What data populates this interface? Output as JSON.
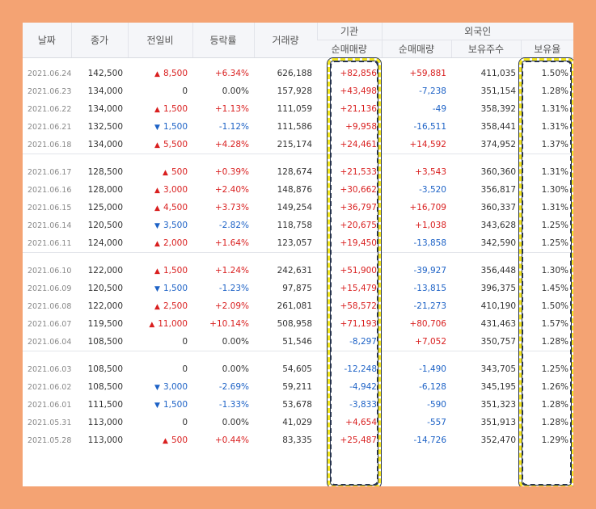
{
  "headers": {
    "date": "날짜",
    "close": "종가",
    "change": "전일비",
    "rate": "등락률",
    "volume": "거래량",
    "institution": "기관",
    "institution_net": "순매매량",
    "foreign": "외국인",
    "foreign_net": "순매매량",
    "foreign_shares": "보유주수",
    "foreign_ratio": "보유율"
  },
  "groups": [
    [
      {
        "date": "2021.06.24",
        "close": "142,500",
        "dir": "up",
        "change": "8,500",
        "rate": "+6.34%",
        "volume": "626,188",
        "inst": "+82,856",
        "frgn": "+59,881",
        "shares": "411,035",
        "ratio": "1.50%"
      },
      {
        "date": "2021.06.23",
        "close": "134,000",
        "dir": "none",
        "change": "0",
        "rate": "0.00%",
        "volume": "157,928",
        "inst": "+43,498",
        "frgn": "-7,238",
        "shares": "351,154",
        "ratio": "1.28%"
      },
      {
        "date": "2021.06.22",
        "close": "134,000",
        "dir": "up",
        "change": "1,500",
        "rate": "+1.13%",
        "volume": "111,059",
        "inst": "+21,136",
        "frgn": "-49",
        "shares": "358,392",
        "ratio": "1.31%"
      },
      {
        "date": "2021.06.21",
        "close": "132,500",
        "dir": "dn",
        "change": "1,500",
        "rate": "-1.12%",
        "volume": "111,586",
        "inst": "+9,958",
        "frgn": "-16,511",
        "shares": "358,441",
        "ratio": "1.31%"
      },
      {
        "date": "2021.06.18",
        "close": "134,000",
        "dir": "up",
        "change": "5,500",
        "rate": "+4.28%",
        "volume": "215,174",
        "inst": "+24,461",
        "frgn": "+14,592",
        "shares": "374,952",
        "ratio": "1.37%"
      }
    ],
    [
      {
        "date": "2021.06.17",
        "close": "128,500",
        "dir": "up",
        "change": "500",
        "rate": "+0.39%",
        "volume": "128,674",
        "inst": "+21,533",
        "frgn": "+3,543",
        "shares": "360,360",
        "ratio": "1.31%"
      },
      {
        "date": "2021.06.16",
        "close": "128,000",
        "dir": "up",
        "change": "3,000",
        "rate": "+2.40%",
        "volume": "148,876",
        "inst": "+30,662",
        "frgn": "-3,520",
        "shares": "356,817",
        "ratio": "1.30%"
      },
      {
        "date": "2021.06.15",
        "close": "125,000",
        "dir": "up",
        "change": "4,500",
        "rate": "+3.73%",
        "volume": "149,254",
        "inst": "+36,797",
        "frgn": "+16,709",
        "shares": "360,337",
        "ratio": "1.31%"
      },
      {
        "date": "2021.06.14",
        "close": "120,500",
        "dir": "dn",
        "change": "3,500",
        "rate": "-2.82%",
        "volume": "118,758",
        "inst": "+20,675",
        "frgn": "+1,038",
        "shares": "343,628",
        "ratio": "1.25%"
      },
      {
        "date": "2021.06.11",
        "close": "124,000",
        "dir": "up",
        "change": "2,000",
        "rate": "+1.64%",
        "volume": "123,057",
        "inst": "+19,450",
        "frgn": "-13,858",
        "shares": "342,590",
        "ratio": "1.25%"
      }
    ],
    [
      {
        "date": "2021.06.10",
        "close": "122,000",
        "dir": "up",
        "change": "1,500",
        "rate": "+1.24%",
        "volume": "242,631",
        "inst": "+51,900",
        "frgn": "-39,927",
        "shares": "356,448",
        "ratio": "1.30%"
      },
      {
        "date": "2021.06.09",
        "close": "120,500",
        "dir": "dn",
        "change": "1,500",
        "rate": "-1.23%",
        "volume": "97,875",
        "inst": "+15,479",
        "frgn": "-13,815",
        "shares": "396,375",
        "ratio": "1.45%"
      },
      {
        "date": "2021.06.08",
        "close": "122,000",
        "dir": "up",
        "change": "2,500",
        "rate": "+2.09%",
        "volume": "261,081",
        "inst": "+58,572",
        "frgn": "-21,273",
        "shares": "410,190",
        "ratio": "1.50%"
      },
      {
        "date": "2021.06.07",
        "close": "119,500",
        "dir": "up",
        "change": "11,000",
        "rate": "+10.14%",
        "volume": "508,958",
        "inst": "+71,193",
        "frgn": "+80,706",
        "shares": "431,463",
        "ratio": "1.57%"
      },
      {
        "date": "2021.06.04",
        "close": "108,500",
        "dir": "none",
        "change": "0",
        "rate": "0.00%",
        "volume": "51,546",
        "inst": "-8,297",
        "frgn": "+7,052",
        "shares": "350,757",
        "ratio": "1.28%"
      }
    ],
    [
      {
        "date": "2021.06.03",
        "close": "108,500",
        "dir": "none",
        "change": "0",
        "rate": "0.00%",
        "volume": "54,605",
        "inst": "-12,248",
        "frgn": "-1,490",
        "shares": "343,705",
        "ratio": "1.25%"
      },
      {
        "date": "2021.06.02",
        "close": "108,500",
        "dir": "dn",
        "change": "3,000",
        "rate": "-2.69%",
        "volume": "59,211",
        "inst": "-4,942",
        "frgn": "-6,128",
        "shares": "345,195",
        "ratio": "1.26%"
      },
      {
        "date": "2021.06.01",
        "close": "111,500",
        "dir": "dn",
        "change": "1,500",
        "rate": "-1.33%",
        "volume": "53,678",
        "inst": "-3,833",
        "frgn": "-590",
        "shares": "351,323",
        "ratio": "1.28%"
      },
      {
        "date": "2021.05.31",
        "close": "113,000",
        "dir": "none",
        "change": "0",
        "rate": "0.00%",
        "volume": "41,029",
        "inst": "+4,654",
        "frgn": "-557",
        "shares": "351,913",
        "ratio": "1.28%"
      },
      {
        "date": "2021.05.28",
        "close": "113,000",
        "dir": "up",
        "change": "500",
        "rate": "+0.44%",
        "volume": "83,335",
        "inst": "+25,487",
        "frgn": "-14,726",
        "shares": "352,470",
        "ratio": "1.29%"
      }
    ]
  ],
  "colors": {
    "up": "#d91f1f",
    "down": "#1d62c6",
    "frame": "#f4a373",
    "highlight_dash": "#f4e61c",
    "highlight_outline": "#26334d"
  },
  "icons": {
    "up": "triangle-up-icon",
    "down": "triangle-down-icon"
  },
  "highlighted_columns": [
    "institution_net",
    "foreign_ratio"
  ]
}
